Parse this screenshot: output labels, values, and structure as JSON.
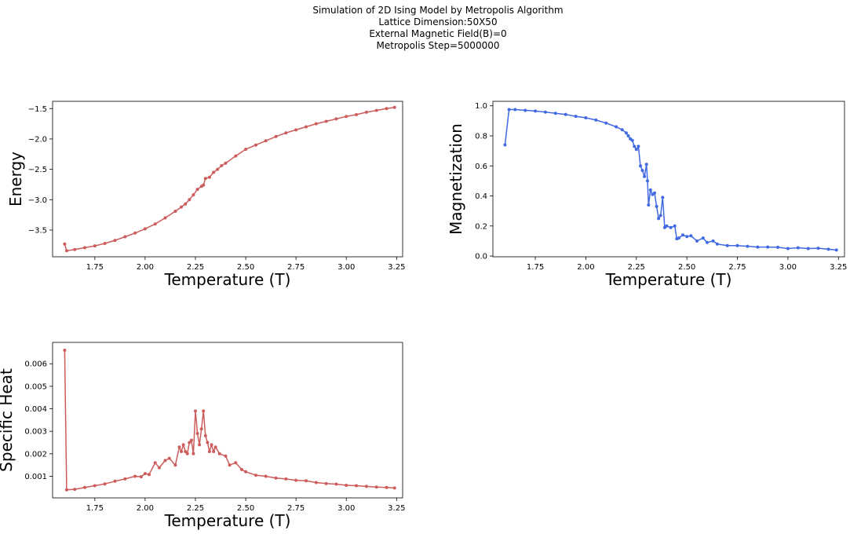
{
  "suptitle": {
    "line1": "Simulation of 2D Ising Model by Metropolis Algorithm",
    "line2": "Lattice Dimension:50X50",
    "line3": "External Magnetic Field(B)=0",
    "line4": "Metropolis Step=5000000"
  },
  "colors": {
    "energy": "#cd5c5c",
    "magnetization": "#4169e1",
    "specific_heat": "#cd5c5c"
  },
  "chart_data": [
    {
      "type": "line",
      "title": "",
      "xlabel": "Temperature (T)",
      "ylabel": "Energy",
      "xlim": [
        1.54,
        3.28
      ],
      "ylim": [
        -3.94,
        -1.38
      ],
      "xticks": [
        1.75,
        2.0,
        2.25,
        2.5,
        2.75,
        3.0,
        3.25
      ],
      "xtick_labels": [
        "1.75",
        "2.00",
        "2.25",
        "2.50",
        "2.75",
        "3.00",
        "3.25"
      ],
      "yticks": [
        -3.5,
        -3.0,
        -2.5,
        -2.0,
        -1.5
      ],
      "ytick_labels": [
        "−3.5",
        "−3.0",
        "−2.5",
        "−2.0",
        "−1.5"
      ],
      "grid": false,
      "series": [
        {
          "color": "#cd5c5c",
          "x": [
            1.6,
            1.61,
            1.65,
            1.7,
            1.75,
            1.8,
            1.85,
            1.9,
            1.95,
            2.0,
            2.05,
            2.1,
            2.15,
            2.18,
            2.2,
            2.22,
            2.24,
            2.26,
            2.28,
            2.29,
            2.3,
            2.32,
            2.34,
            2.36,
            2.38,
            2.4,
            2.45,
            2.5,
            2.55,
            2.6,
            2.65,
            2.7,
            2.75,
            2.8,
            2.85,
            2.9,
            2.95,
            3.0,
            3.05,
            3.1,
            3.15,
            3.2,
            3.24
          ],
          "y": [
            -3.73,
            -3.84,
            -3.82,
            -3.79,
            -3.76,
            -3.72,
            -3.67,
            -3.61,
            -3.55,
            -3.48,
            -3.4,
            -3.3,
            -3.19,
            -3.12,
            -3.07,
            -3.0,
            -2.92,
            -2.83,
            -2.78,
            -2.76,
            -2.65,
            -2.63,
            -2.55,
            -2.5,
            -2.44,
            -2.4,
            -2.28,
            -2.17,
            -2.1,
            -2.03,
            -1.96,
            -1.9,
            -1.85,
            -1.8,
            -1.75,
            -1.71,
            -1.67,
            -1.63,
            -1.6,
            -1.56,
            -1.53,
            -1.5,
            -1.48
          ]
        }
      ]
    },
    {
      "type": "line",
      "title": "",
      "xlabel": "Temperature (T)",
      "ylabel": "Magnetization",
      "xlim": [
        1.54,
        3.28
      ],
      "ylim": [
        -0.005,
        1.03
      ],
      "xticks": [
        1.75,
        2.0,
        2.25,
        2.5,
        2.75,
        3.0,
        3.25
      ],
      "xtick_labels": [
        "1.75",
        "2.00",
        "2.25",
        "2.50",
        "2.75",
        "3.00",
        "3.25"
      ],
      "yticks": [
        0.0,
        0.2,
        0.4,
        0.6,
        0.8,
        1.0
      ],
      "ytick_labels": [
        "0.0",
        "0.2",
        "0.4",
        "0.6",
        "0.8",
        "1.0"
      ],
      "grid": false,
      "series": [
        {
          "color": "#4169e1",
          "x": [
            1.6,
            1.62,
            1.65,
            1.7,
            1.75,
            1.8,
            1.85,
            1.9,
            1.95,
            2.0,
            2.05,
            2.1,
            2.15,
            2.18,
            2.2,
            2.21,
            2.22,
            2.23,
            2.24,
            2.25,
            2.26,
            2.27,
            2.28,
            2.29,
            2.3,
            2.305,
            2.31,
            2.32,
            2.33,
            2.34,
            2.35,
            2.36,
            2.37,
            2.38,
            2.39,
            2.4,
            2.42,
            2.44,
            2.45,
            2.46,
            2.48,
            2.5,
            2.52,
            2.55,
            2.58,
            2.6,
            2.63,
            2.65,
            2.7,
            2.75,
            2.8,
            2.85,
            2.9,
            2.95,
            3.0,
            3.05,
            3.1,
            3.15,
            3.2,
            3.24
          ],
          "y": [
            0.74,
            0.975,
            0.975,
            0.97,
            0.965,
            0.958,
            0.95,
            0.942,
            0.93,
            0.92,
            0.905,
            0.885,
            0.86,
            0.84,
            0.82,
            0.8,
            0.78,
            0.77,
            0.73,
            0.71,
            0.73,
            0.6,
            0.57,
            0.53,
            0.61,
            0.5,
            0.34,
            0.44,
            0.41,
            0.42,
            0.33,
            0.25,
            0.27,
            0.39,
            0.19,
            0.2,
            0.19,
            0.2,
            0.115,
            0.12,
            0.14,
            0.13,
            0.135,
            0.1,
            0.12,
            0.09,
            0.1,
            0.08,
            0.07,
            0.07,
            0.065,
            0.06,
            0.06,
            0.058,
            0.05,
            0.055,
            0.05,
            0.052,
            0.045,
            0.04
          ]
        }
      ]
    },
    {
      "type": "line",
      "title": "",
      "xlabel": "Temperature (T)",
      "ylabel": "Specific Heat",
      "xlim": [
        1.54,
        3.28
      ],
      "ylim": [
        4e-05,
        0.00695
      ],
      "xticks": [
        1.75,
        2.0,
        2.25,
        2.5,
        2.75,
        3.0,
        3.25
      ],
      "xtick_labels": [
        "1.75",
        "2.00",
        "2.25",
        "2.50",
        "2.75",
        "3.00",
        "3.25"
      ],
      "yticks": [
        0.001,
        0.002,
        0.003,
        0.004,
        0.005,
        0.006
      ],
      "ytick_labels": [
        "0.001",
        "0.002",
        "0.003",
        "0.004",
        "0.005",
        "0.006"
      ],
      "grid": false,
      "series": [
        {
          "color": "#cd5c5c",
          "x": [
            1.6,
            1.61,
            1.65,
            1.7,
            1.75,
            1.8,
            1.85,
            1.9,
            1.95,
            1.98,
            2.0,
            2.02,
            2.05,
            2.07,
            2.1,
            2.12,
            2.15,
            2.17,
            2.18,
            2.19,
            2.2,
            2.21,
            2.22,
            2.23,
            2.24,
            2.25,
            2.26,
            2.27,
            2.28,
            2.29,
            2.3,
            2.31,
            2.32,
            2.33,
            2.34,
            2.35,
            2.37,
            2.4,
            2.42,
            2.45,
            2.48,
            2.5,
            2.55,
            2.6,
            2.65,
            2.7,
            2.75,
            2.8,
            2.85,
            2.9,
            2.95,
            3.0,
            3.05,
            3.1,
            3.15,
            3.2,
            3.24
          ],
          "y": [
            0.0066,
            0.0004,
            0.00042,
            0.0005,
            0.00058,
            0.00066,
            0.00078,
            0.00088,
            0.001,
            0.00098,
            0.00112,
            0.00108,
            0.0016,
            0.00138,
            0.0017,
            0.0018,
            0.0015,
            0.0023,
            0.0021,
            0.0024,
            0.0021,
            0.002,
            0.0025,
            0.0026,
            0.002,
            0.0039,
            0.0029,
            0.0024,
            0.0031,
            0.0039,
            0.0028,
            0.0025,
            0.0021,
            0.0024,
            0.0021,
            0.0023,
            0.002,
            0.0019,
            0.0015,
            0.0016,
            0.0013,
            0.0012,
            0.00105,
            0.001,
            0.00092,
            0.00088,
            0.00082,
            0.0008,
            0.00072,
            0.00068,
            0.00065,
            0.0006,
            0.00058,
            0.00055,
            0.00052,
            0.0005,
            0.00048
          ]
        }
      ]
    }
  ]
}
